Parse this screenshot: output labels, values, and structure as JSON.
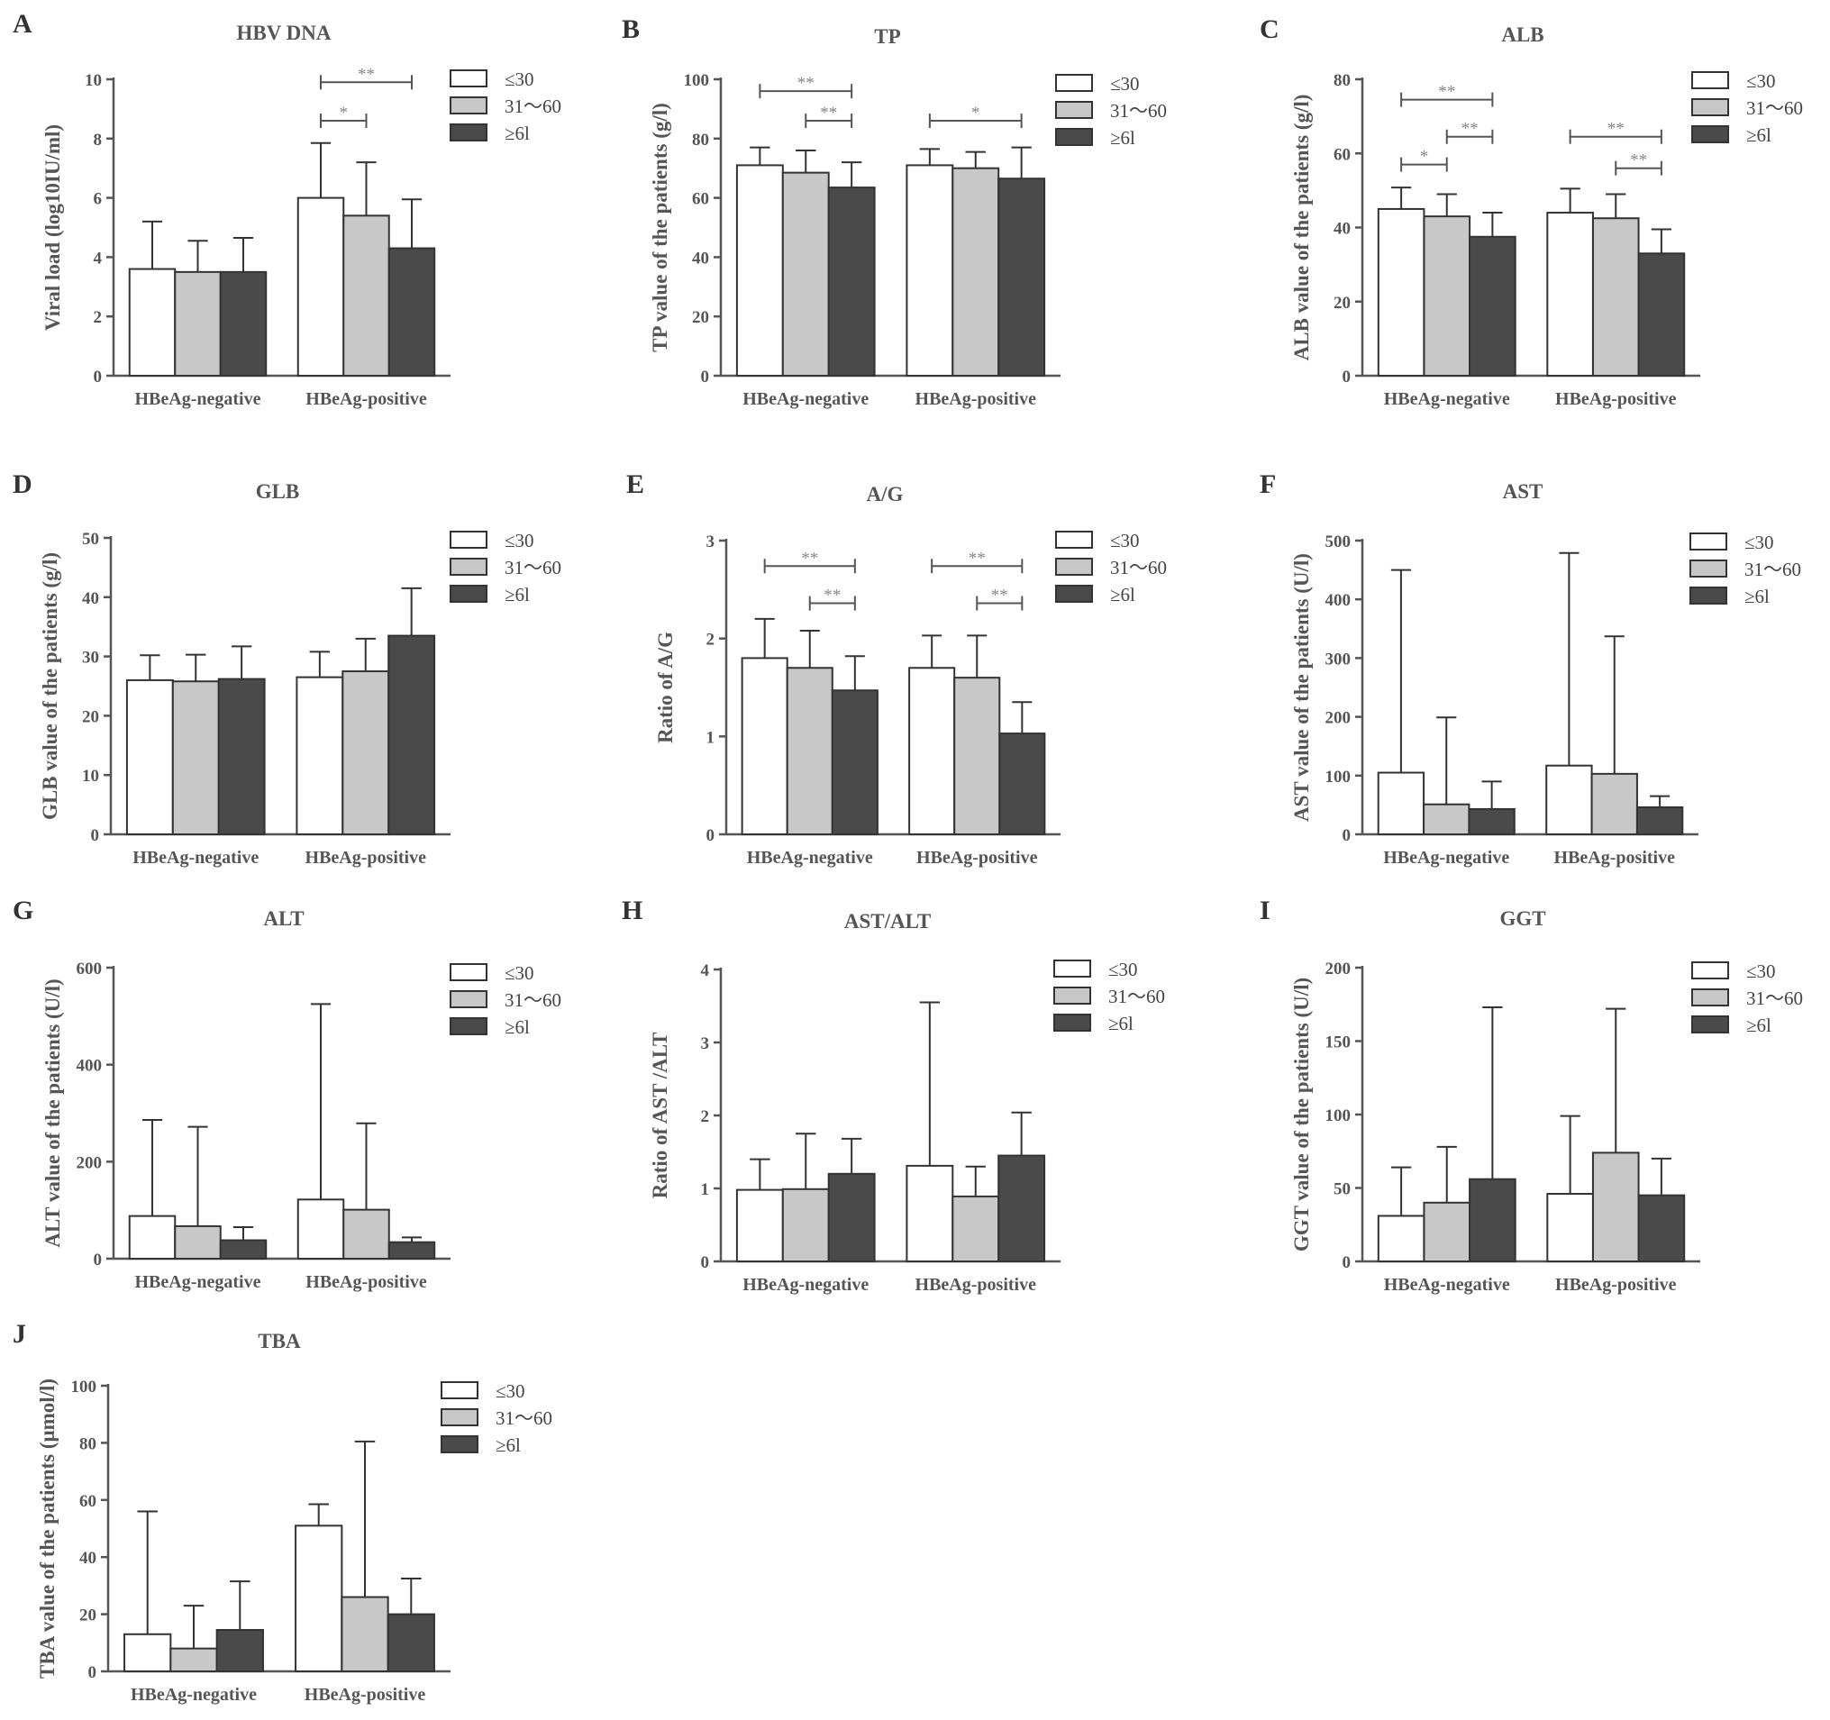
{
  "chart_data": [
    {
      "type": "bar",
      "letter": "A",
      "title": "HBV DNA",
      "ylabel": "Viral load (log10IU/ml)",
      "ylim": [
        0,
        10
      ],
      "yticks": [
        0,
        2,
        4,
        6,
        8,
        10
      ],
      "categories": [
        "HBeAg-negative",
        "HBeAg-positive"
      ],
      "series": [
        {
          "name": "≤30",
          "values": [
            3.6,
            6.0
          ],
          "errors": [
            1.6,
            1.85
          ]
        },
        {
          "name": "31～60",
          "values": [
            3.5,
            5.4
          ],
          "errors": [
            1.05,
            1.8
          ]
        },
        {
          "name": "≥6l",
          "values": [
            3.5,
            4.3
          ],
          "errors": [
            1.15,
            1.65
          ]
        }
      ],
      "significance": [
        {
          "cat": 1,
          "from": 0,
          "to": 2,
          "label": "**",
          "y": 9.9
        },
        {
          "cat": 1,
          "from": 0,
          "to": 1,
          "label": "*",
          "y": 8.6
        }
      ]
    },
    {
      "type": "bar",
      "letter": "B",
      "title": "TP",
      "ylabel": "TP value of the patients (g/l)",
      "ylim": [
        0,
        100
      ],
      "yticks": [
        0,
        20,
        40,
        60,
        80,
        100
      ],
      "categories": [
        "HBeAg-negative",
        "HBeAg-positive"
      ],
      "series": [
        {
          "name": "≤30",
          "values": [
            71,
            71
          ],
          "errors": [
            6,
            5.5
          ]
        },
        {
          "name": "31～60",
          "values": [
            68.5,
            70
          ],
          "errors": [
            7.5,
            5.5
          ]
        },
        {
          "name": "≥6l",
          "values": [
            63.5,
            66.5
          ],
          "errors": [
            8.5,
            10.5
          ]
        }
      ],
      "significance": [
        {
          "cat": 0,
          "from": 0,
          "to": 2,
          "label": "**",
          "y": 96
        },
        {
          "cat": 0,
          "from": 1,
          "to": 2,
          "label": "**",
          "y": 86
        },
        {
          "cat": 1,
          "from": 0,
          "to": 2,
          "label": "*",
          "y": 86
        }
      ]
    },
    {
      "type": "bar",
      "letter": "C",
      "title": "ALB",
      "ylabel": "ALB value of the patients (g/l)",
      "ylim": [
        0,
        80
      ],
      "yticks": [
        0,
        20,
        40,
        60,
        80
      ],
      "categories": [
        "HBeAg-negative",
        "HBeAg-positive"
      ],
      "series": [
        {
          "name": "≤30",
          "values": [
            45,
            44
          ],
          "errors": [
            5.8,
            6.5
          ]
        },
        {
          "name": "31～60",
          "values": [
            43,
            42.5
          ],
          "errors": [
            6,
            6.5
          ]
        },
        {
          "name": "≥6l",
          "values": [
            37.5,
            33
          ],
          "errors": [
            6.5,
            6.5
          ]
        }
      ],
      "significance": [
        {
          "cat": 0,
          "from": 0,
          "to": 2,
          "label": "**",
          "y": 74.5
        },
        {
          "cat": 0,
          "from": 1,
          "to": 2,
          "label": "**",
          "y": 64.5
        },
        {
          "cat": 0,
          "from": 0,
          "to": 1,
          "label": "*",
          "y": 57
        },
        {
          "cat": 1,
          "from": 0,
          "to": 2,
          "label": "**",
          "y": 64.5
        },
        {
          "cat": 1,
          "from": 1,
          "to": 2,
          "label": "**",
          "y": 56
        }
      ]
    },
    {
      "type": "bar",
      "letter": "D",
      "title": "GLB",
      "ylabel": "GLB value of the patients (g/l)",
      "ylim": [
        0,
        50
      ],
      "yticks": [
        0,
        10,
        20,
        30,
        40,
        50
      ],
      "categories": [
        "HBeAg-negative",
        "HBeAg-positive"
      ],
      "series": [
        {
          "name": "≤30",
          "values": [
            26,
            26.5
          ],
          "errors": [
            4.2,
            4.3
          ]
        },
        {
          "name": "31～60",
          "values": [
            25.8,
            27.5
          ],
          "errors": [
            4.5,
            5.5
          ]
        },
        {
          "name": "≥6l",
          "values": [
            26.2,
            33.5
          ],
          "errors": [
            5.5,
            8
          ]
        }
      ],
      "significance": []
    },
    {
      "type": "bar",
      "letter": "E",
      "title": "A/G",
      "ylabel": "Ratio of A/G",
      "ylim": [
        0,
        3
      ],
      "yticks": [
        0,
        1,
        2,
        3
      ],
      "categories": [
        "HBeAg-negative",
        "HBeAg-positive"
      ],
      "series": [
        {
          "name": "≤30",
          "values": [
            1.8,
            1.7
          ],
          "errors": [
            0.4,
            0.33
          ]
        },
        {
          "name": "31～60",
          "values": [
            1.7,
            1.6
          ],
          "errors": [
            0.38,
            0.43
          ]
        },
        {
          "name": "≥6l",
          "values": [
            1.47,
            1.03
          ],
          "errors": [
            0.35,
            0.32
          ]
        }
      ],
      "significance": [
        {
          "cat": 0,
          "from": 0,
          "to": 2,
          "label": "**",
          "y": 2.74
        },
        {
          "cat": 0,
          "from": 1,
          "to": 2,
          "label": "**",
          "y": 2.36
        },
        {
          "cat": 1,
          "from": 0,
          "to": 2,
          "label": "**",
          "y": 2.74
        },
        {
          "cat": 1,
          "from": 1,
          "to": 2,
          "label": "**",
          "y": 2.36
        }
      ]
    },
    {
      "type": "bar",
      "letter": "F",
      "title": "AST",
      "ylabel": "AST value of the patients (U/l)",
      "ylim": [
        0,
        500
      ],
      "yticks": [
        0,
        100,
        200,
        300,
        400,
        500
      ],
      "categories": [
        "HBeAg-negative",
        "HBeAg-positive"
      ],
      "series": [
        {
          "name": "≤30",
          "values": [
            105,
            117
          ],
          "errors": [
            345,
            362
          ]
        },
        {
          "name": "31～60",
          "values": [
            51,
            103
          ],
          "errors": [
            148,
            234
          ]
        },
        {
          "name": "≥6l",
          "values": [
            43,
            46
          ],
          "errors": [
            47,
            19
          ]
        }
      ],
      "significance": []
    },
    {
      "type": "bar",
      "letter": "G",
      "title": "ALT",
      "ylabel": "ALT value of the patients (U/l)",
      "ylim": [
        0,
        600
      ],
      "yticks": [
        0,
        200,
        400,
        600
      ],
      "categories": [
        "HBeAg-negative",
        "HBeAg-positive"
      ],
      "series": [
        {
          "name": "≤30",
          "values": [
            88,
            122
          ],
          "errors": [
            198,
            403
          ]
        },
        {
          "name": "31～60",
          "values": [
            67,
            101
          ],
          "errors": [
            205,
            178
          ]
        },
        {
          "name": "≥6l",
          "values": [
            38,
            34
          ],
          "errors": [
            27,
            10
          ]
        }
      ],
      "significance": []
    },
    {
      "type": "bar",
      "letter": "H",
      "title": "AST/ALT",
      "ylabel": "Ratio of AST /ALT",
      "ylim": [
        0,
        4
      ],
      "yticks": [
        0,
        1,
        2,
        3,
        4
      ],
      "categories": [
        "HBeAg-negative",
        "HBeAg-positive"
      ],
      "series": [
        {
          "name": "≤30",
          "values": [
            0.98,
            1.31
          ],
          "errors": [
            0.42,
            2.24
          ]
        },
        {
          "name": "31～60",
          "values": [
            0.99,
            0.89
          ],
          "errors": [
            0.76,
            0.41
          ]
        },
        {
          "name": "≥6l",
          "values": [
            1.2,
            1.45
          ],
          "errors": [
            0.48,
            0.59
          ]
        }
      ],
      "significance": []
    },
    {
      "type": "bar",
      "letter": "I",
      "title": "GGT",
      "ylabel": "GGT value of the patients (U/l)",
      "ylim": [
        0,
        200
      ],
      "yticks": [
        0,
        50,
        100,
        150,
        200
      ],
      "categories": [
        "HBeAg-negative",
        "HBeAg-positive"
      ],
      "series": [
        {
          "name": "≤30",
          "values": [
            31,
            46
          ],
          "errors": [
            33,
            53
          ]
        },
        {
          "name": "31～60",
          "values": [
            40,
            74
          ],
          "errors": [
            38,
            98
          ]
        },
        {
          "name": "≥6l",
          "values": [
            56,
            45
          ],
          "errors": [
            117,
            25
          ]
        }
      ],
      "significance": []
    },
    {
      "type": "bar",
      "letter": "J",
      "title": "TBA",
      "ylabel": "TBA value of the patients (μmol/l)",
      "ylim": [
        0,
        100
      ],
      "yticks": [
        0,
        20,
        40,
        60,
        80,
        100
      ],
      "categories": [
        "HBeAg-negative",
        "HBeAg-positive"
      ],
      "series": [
        {
          "name": "≤30",
          "values": [
            13,
            51
          ],
          "errors": [
            43,
            7.5
          ]
        },
        {
          "name": "31～60",
          "values": [
            8,
            26
          ],
          "errors": [
            15,
            54.5
          ]
        },
        {
          "name": "≥6l",
          "values": [
            14.5,
            20
          ],
          "errors": [
            17,
            12.5
          ]
        }
      ],
      "significance": []
    }
  ],
  "colors": {
    "series": [
      "#ffffff",
      "#c8c8c8",
      "#4a4a4a"
    ],
    "axis": "#555555",
    "bar_stroke": "#333333",
    "sig_text": "#888888"
  }
}
